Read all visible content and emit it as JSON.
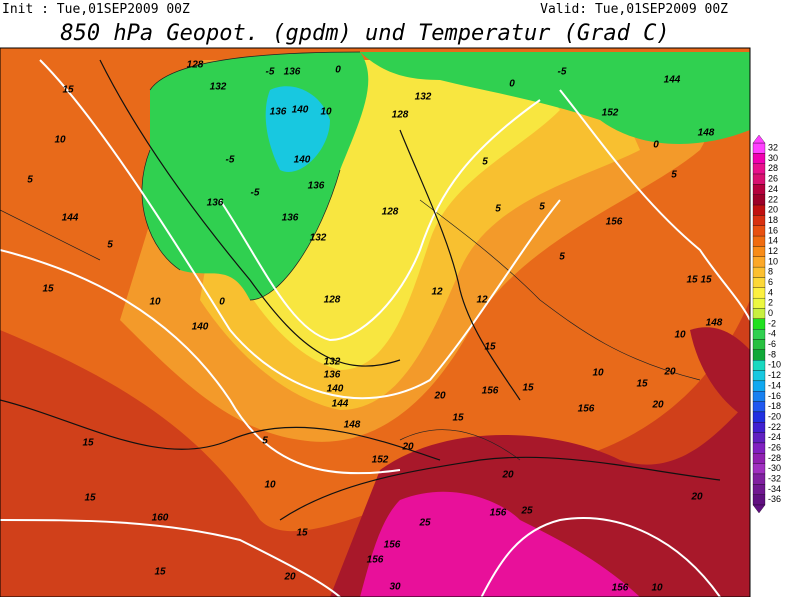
{
  "header": {
    "init": "Init : Tue,01SEP2009 00Z",
    "valid": "Valid: Tue,01SEP2009 00Z",
    "title": "850 hPa Geopot. (gpdm) und Temperatur (Grad C)"
  },
  "colorbar": {
    "levels": [
      32,
      30,
      28,
      26,
      24,
      22,
      20,
      18,
      16,
      14,
      12,
      10,
      8,
      6,
      4,
      2,
      0,
      -2,
      -4,
      -6,
      -8,
      -10,
      -12,
      -14,
      -16,
      -18,
      -20,
      -22,
      -24,
      -26,
      -28,
      -30,
      -32,
      -34,
      -36
    ],
    "colors": [
      "#ff40ff",
      "#f000b0",
      "#e8108c",
      "#d81070",
      "#b4003c",
      "#9c0028",
      "#c01010",
      "#d83010",
      "#e85010",
      "#f06c10",
      "#f88c18",
      "#fca828",
      "#fcc030",
      "#fcd838",
      "#fcf040",
      "#ecf840",
      "#c8f040",
      "#20e020",
      "#30d050",
      "#28c040",
      "#10a838",
      "#18d8c0",
      "#18c8e0",
      "#10a8f0",
      "#1880f0",
      "#2058f0",
      "#2030e0",
      "#4020d0",
      "#6020c0",
      "#8020c0",
      "#9020b0",
      "#a030c0",
      "#8020a0",
      "#701890",
      "#601080"
    ]
  },
  "map": {
    "contour_labels": [
      "128",
      "-5",
      "136",
      "132",
      "0",
      "15",
      "10",
      "5",
      "144",
      "5",
      "15",
      "10",
      "140",
      "0",
      "128",
      "132",
      "136",
      "140",
      "144",
      "148",
      "152",
      "5",
      "10",
      "15",
      "15",
      "160",
      "15",
      "15",
      "20",
      "25",
      "156",
      "30",
      "156",
      "20",
      "156",
      "25",
      "156",
      "10",
      "20",
      "156",
      "20",
      "15",
      "20",
      "10",
      "156",
      "15",
      "20",
      "15",
      "20",
      "15",
      "12",
      "12",
      "5",
      "156",
      "152",
      "148",
      "144",
      "-5",
      "0",
      "5",
      "0",
      "132",
      "128",
      "5",
      "5",
      "10",
      "140",
      "136",
      "140",
      "136",
      "136",
      "136",
      "132",
      "128",
      "-5",
      "-5",
      "5",
      "15",
      "15",
      "148",
      "10"
    ]
  }
}
